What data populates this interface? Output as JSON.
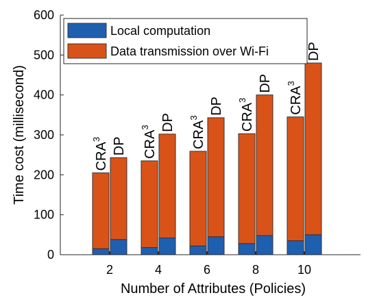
{
  "chart_data": {
    "type": "bar",
    "stacked": true,
    "grouped": true,
    "categories": [
      "2",
      "4",
      "6",
      "8",
      "10"
    ],
    "groups": [
      "CRA",
      "DP"
    ],
    "group_label_superscript": {
      "CRA": "3",
      "DP": ""
    },
    "series": [
      {
        "name": "Local computation",
        "color": "#1f5fb0",
        "values": {
          "CRA": [
            15,
            18,
            22,
            28,
            35
          ],
          "DP": [
            38,
            42,
            45,
            48,
            50
          ]
        }
      },
      {
        "name": "Data transmission over Wi-Fi",
        "color": "#d95319",
        "values": {
          "CRA": [
            190,
            217,
            237,
            275,
            310
          ],
          "DP": [
            205,
            260,
            298,
            352,
            430
          ]
        }
      }
    ],
    "xlabel": "Number of Attributes (Policies)",
    "ylabel": "Time cost (millisecond)",
    "ylim": [
      0,
      600
    ],
    "yticks": [
      0,
      100,
      200,
      300,
      400,
      500,
      600
    ],
    "legend_position": "top-left",
    "grid": false
  }
}
